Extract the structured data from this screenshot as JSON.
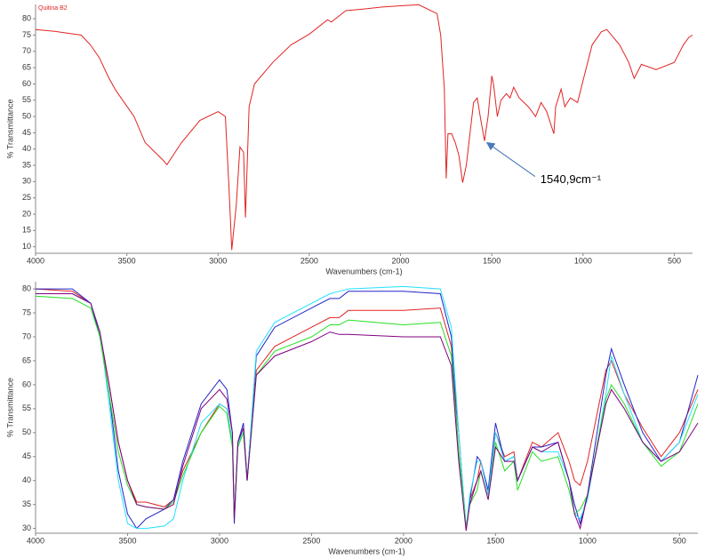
{
  "chart_data": [
    {
      "type": "line",
      "x": [
        4000,
        3900,
        3750,
        3700,
        3650,
        3600,
        3560,
        3460,
        3400,
        3300,
        3280,
        3200,
        3100,
        3000,
        2960,
        2940,
        2925,
        2900,
        2880,
        2860,
        2850,
        2830,
        2800,
        2700,
        2600,
        2500,
        2400,
        2380,
        2300,
        2200,
        2100,
        2000,
        1900,
        1800,
        1780,
        1760,
        1750,
        1740,
        1720,
        1700,
        1680,
        1660,
        1640,
        1600,
        1580,
        1560,
        1540,
        1520,
        1500,
        1490,
        1470,
        1450,
        1420,
        1400,
        1380,
        1350,
        1300,
        1260,
        1230,
        1200,
        1160,
        1150,
        1120,
        1100,
        1070,
        1030,
        1000,
        950,
        900,
        870,
        800,
        750,
        720,
        680,
        600,
        500,
        450,
        420,
        400
      ],
      "series": [
        {
          "name": "Quitina B2",
          "color": "#e02424",
          "values": [
            76.7,
            76.2,
            75,
            72,
            68,
            62,
            58,
            50,
            42,
            36.5,
            35.2,
            42,
            48.8,
            51.5,
            50,
            28,
            9,
            23,
            40.6,
            39,
            19,
            53,
            60,
            66.6,
            72,
            75.3,
            79.7,
            79,
            82.5,
            83,
            83.6,
            84,
            84.3,
            81.6,
            75,
            58.4,
            31,
            44.7,
            44.7,
            42,
            38,
            29.7,
            35,
            54.3,
            55.7,
            48.8,
            42.5,
            50.2,
            62.5,
            59.8,
            50,
            55,
            57,
            55.7,
            59,
            55.7,
            53,
            50,
            54.3,
            51.6,
            44.7,
            53,
            58.4,
            53,
            55.7,
            54.3,
            61,
            72,
            76,
            76.7,
            72,
            66.6,
            61.7,
            66,
            64.4,
            66.6,
            72,
            74.3,
            75
          ]
        }
      ],
      "xlim": [
        4000,
        400
      ],
      "xticks": [
        4000,
        3500,
        3000,
        2500,
        2000,
        1500,
        1000,
        500
      ],
      "ylim": [
        8,
        84.4
      ],
      "yticks": [
        10,
        15,
        20,
        25,
        30,
        35,
        40,
        45,
        50,
        55,
        60,
        65,
        70,
        75,
        80
      ],
      "xlabel": "Wavenumbers (cm-1)",
      "ylabel": "% Transmittance",
      "annotation": {
        "text": "1540,9cm⁻¹",
        "x": 1540.9,
        "y": 42.5
      }
    },
    {
      "type": "line",
      "x": [
        4000,
        3800,
        3700,
        3650,
        3600,
        3550,
        3500,
        3450,
        3400,
        3300,
        3250,
        3200,
        3100,
        3000,
        2960,
        2930,
        2920,
        2900,
        2870,
        2850,
        2800,
        2700,
        2500,
        2400,
        2350,
        2300,
        2000,
        1800,
        1740,
        1700,
        1660,
        1640,
        1600,
        1580,
        1540,
        1500,
        1450,
        1400,
        1380,
        1300,
        1250,
        1160,
        1100,
        1070,
        1040,
        1000,
        900,
        870,
        800,
        700,
        600,
        500,
        400
      ],
      "series": [
        {
          "color": "#e02424",
          "values": [
            80,
            79.5,
            77,
            70,
            60,
            48,
            40,
            35.5,
            35.5,
            34.5,
            36,
            42,
            50,
            56,
            55,
            48,
            32,
            48,
            51,
            40,
            63,
            68,
            72,
            74,
            74,
            75.5,
            75.5,
            76,
            68,
            50,
            30,
            36,
            40,
            44,
            37,
            50,
            45,
            46,
            40,
            48,
            47,
            50,
            44,
            40,
            39,
            44,
            63,
            65,
            58,
            51,
            45,
            50,
            59
          ]
        },
        {
          "color": "#2424c8",
          "values": [
            80,
            80,
            77,
            70,
            58,
            42,
            33,
            30,
            32,
            34,
            36,
            44,
            56,
            61,
            59,
            50,
            31,
            48,
            52,
            40,
            66,
            72,
            76,
            78,
            78,
            79.5,
            79.5,
            79,
            70,
            45,
            30,
            36,
            45,
            44,
            38,
            52,
            44,
            45,
            40,
            47,
            47,
            48,
            40,
            35,
            31,
            37,
            62,
            67.5,
            60,
            50,
            44,
            48,
            62
          ]
        },
        {
          "color": "#24e0ff",
          "values": [
            79,
            79,
            77,
            71,
            56,
            40,
            31,
            30,
            30,
            30.5,
            32,
            40,
            52,
            56,
            55,
            48,
            32,
            47,
            51,
            40,
            67,
            73,
            77,
            79,
            79.5,
            80,
            80.5,
            80,
            72,
            50,
            30,
            37,
            44,
            44,
            37,
            50,
            44,
            45,
            40,
            47,
            46,
            46,
            40,
            33,
            32,
            36,
            58,
            66,
            58,
            48,
            44,
            48,
            58
          ]
        },
        {
          "color": "#24e024",
          "values": [
            78.5,
            78,
            76,
            70,
            58,
            46,
            39,
            35,
            34.5,
            34,
            35.5,
            41,
            50,
            55.5,
            54,
            47,
            32,
            47,
            50,
            40,
            62,
            67,
            70,
            72.5,
            72.5,
            73.5,
            72.5,
            73,
            66,
            46,
            30,
            35,
            38,
            42,
            36,
            48,
            42,
            44,
            38,
            46,
            44,
            45,
            38,
            33,
            34,
            37,
            57,
            60,
            56,
            48,
            43,
            46,
            56
          ]
        },
        {
          "color": "#800080",
          "values": [
            79,
            79,
            77,
            71,
            60,
            48,
            40,
            35,
            34.5,
            34,
            35,
            43,
            55,
            59,
            57,
            50,
            32,
            48,
            51,
            40,
            62,
            66,
            69,
            71,
            70.5,
            70.5,
            70,
            70,
            64,
            44,
            29.5,
            35,
            40,
            42,
            36,
            47,
            44,
            44,
            40,
            47,
            46,
            48,
            40,
            33,
            30,
            37,
            56,
            59,
            55,
            48,
            44,
            46,
            52
          ]
        }
      ],
      "xlim": [
        4000,
        400
      ],
      "xticks": [
        4000,
        3500,
        3000,
        2500,
        2000,
        1500,
        1000,
        500
      ],
      "ylim": [
        29,
        81.5
      ],
      "yticks": [
        30,
        35,
        40,
        45,
        50,
        55,
        60,
        65,
        70,
        75,
        80
      ],
      "xlabel": "Wavenumbers (cm-1)",
      "ylabel": "% Transmittance"
    }
  ]
}
